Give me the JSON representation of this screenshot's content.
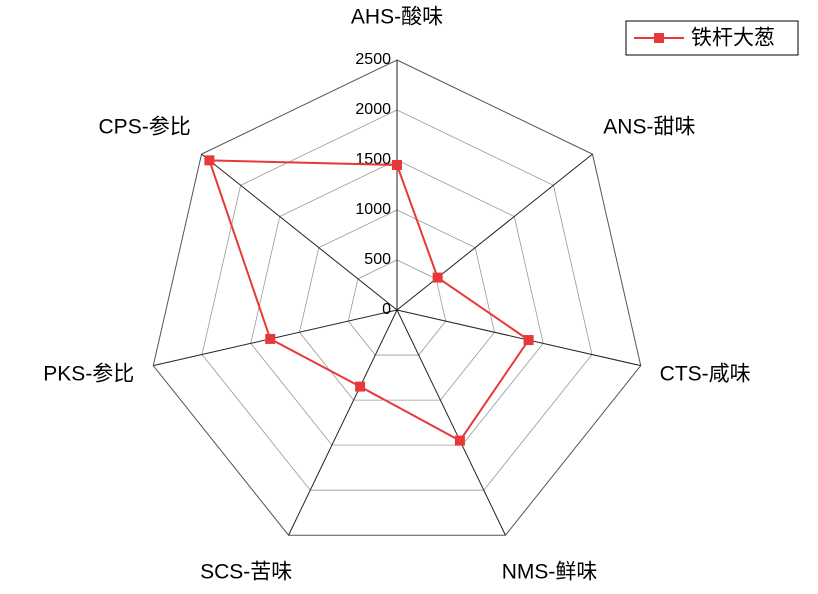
{
  "chart_data": {
    "type": "radar",
    "categories": [
      "AHS-酸味",
      "ANS-甜味",
      "CTS-咸味",
      "NMS-鲜味",
      "SCS-苦味",
      "PKS-参比",
      "CPS-参比"
    ],
    "series": [
      {
        "name": "铁杆大葱",
        "values": [
          1450,
          520,
          1350,
          1450,
          850,
          1300,
          2400
        ],
        "color": "#e8393a",
        "marker": "square"
      }
    ],
    "rlim": [
      0,
      2500
    ],
    "ticks": [
      0,
      500,
      1000,
      1500,
      2000,
      2500
    ],
    "tick_labels": [
      "0",
      "500",
      "1000",
      "1500",
      "2000",
      "2500"
    ],
    "grid": true,
    "legend": "top-right"
  }
}
